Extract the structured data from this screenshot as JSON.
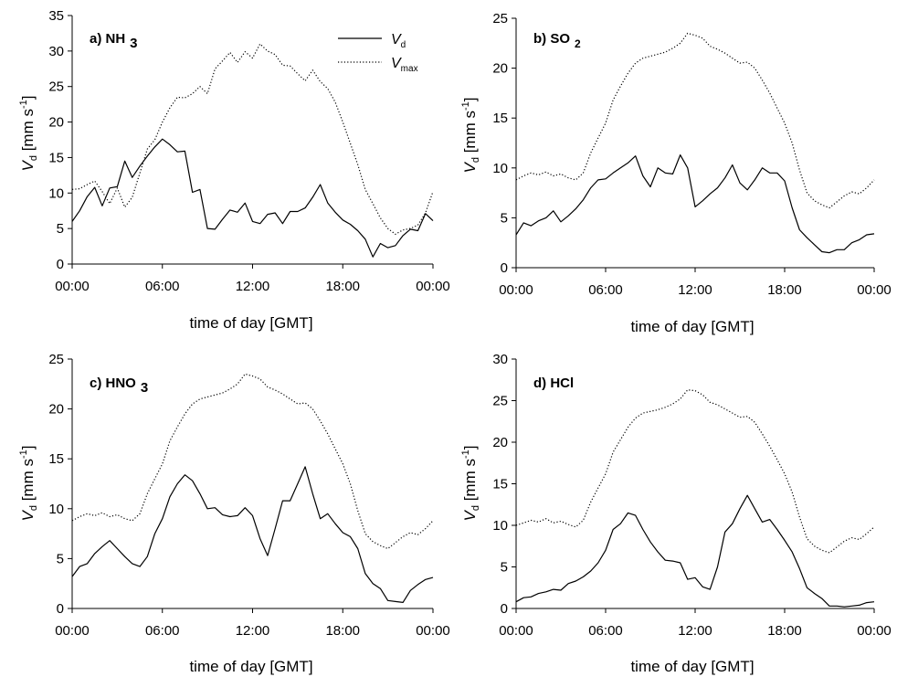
{
  "legend": {
    "vd_label": "V",
    "vd_sub": "d",
    "vmax_label": "V",
    "vmax_sub": "max"
  },
  "ylabel_main": "V",
  "ylabel_sub": "d",
  "ylabel_unit_base": " [mm s",
  "ylabel_unit_sup": "-1",
  "ylabel_unit_close": "]",
  "xlabel": "time of day [GMT]",
  "x_tick_labels": [
    "00:00",
    "06:00",
    "12:00",
    "18:00",
    "00:00"
  ],
  "chart_data": [
    {
      "type": "line",
      "title_main": "a) NH",
      "title_sub": "3",
      "xlim": [
        0,
        24
      ],
      "ylim": [
        0,
        35
      ],
      "yticks": [
        0,
        5,
        10,
        15,
        20,
        25,
        30,
        35
      ],
      "x": [
        0,
        0.5,
        1,
        1.5,
        2,
        2.5,
        3,
        3.5,
        4,
        4.5,
        5,
        5.5,
        6,
        6.5,
        7,
        7.5,
        8,
        8.5,
        9,
        9.5,
        10,
        10.5,
        11,
        11.5,
        12,
        12.5,
        13,
        13.5,
        14,
        14.5,
        15,
        15.5,
        16,
        16.5,
        17,
        17.5,
        18,
        18.5,
        19,
        19.5,
        20,
        20.5,
        21,
        21.5,
        22,
        22.5,
        23,
        23.5,
        24
      ],
      "series": [
        {
          "name": "Vd",
          "style": "solid",
          "values": [
            6.0,
            7.5,
            9.5,
            10.8,
            8.2,
            10.7,
            10.9,
            14.5,
            12.2,
            13.8,
            15.2,
            16.5,
            17.6,
            16.8,
            15.8,
            15.9,
            10.1,
            10.5,
            5.0,
            4.9,
            6.3,
            7.6,
            7.3,
            8.6,
            6.0,
            5.7,
            7.0,
            7.2,
            5.7,
            7.4,
            7.4,
            7.9,
            9.4,
            11.2,
            8.6,
            7.3,
            6.2,
            5.6,
            4.7,
            3.5,
            1.0,
            2.9,
            2.3,
            2.6,
            4.0,
            4.9,
            4.7,
            7.1,
            6.1
          ]
        },
        {
          "name": "Vmax",
          "style": "dotted",
          "values": [
            10.5,
            10.6,
            11.2,
            11.7,
            10.2,
            8.5,
            10.7,
            8.0,
            9.4,
            12.8,
            16.2,
            17.5,
            20.0,
            22.0,
            23.5,
            23.4,
            24.0,
            25.0,
            24.0,
            27.5,
            28.6,
            29.8,
            28.4,
            29.9,
            29.0,
            31.0,
            30.0,
            29.5,
            28.0,
            27.9,
            26.8,
            25.8,
            27.3,
            25.7,
            24.7,
            22.8,
            20.0,
            17.0,
            14.0,
            10.5,
            8.5,
            6.5,
            5.0,
            4.2,
            4.8,
            5.0,
            5.5,
            7.2,
            10.2
          ]
        }
      ]
    },
    {
      "type": "line",
      "title_main": "b) SO",
      "title_sub": "2",
      "xlim": [
        0,
        24
      ],
      "ylim": [
        0,
        25
      ],
      "yticks": [
        0,
        5,
        10,
        15,
        20,
        25
      ],
      "x": [
        0,
        0.5,
        1,
        1.5,
        2,
        2.5,
        3,
        3.5,
        4,
        4.5,
        5,
        5.5,
        6,
        6.5,
        7,
        7.5,
        8,
        8.5,
        9,
        9.5,
        10,
        10.5,
        11,
        11.5,
        12,
        12.5,
        13,
        13.5,
        14,
        14.5,
        15,
        15.5,
        16,
        16.5,
        17,
        17.5,
        18,
        18.5,
        19,
        19.5,
        20,
        20.5,
        21,
        21.5,
        22,
        22.5,
        23,
        23.5,
        24
      ],
      "series": [
        {
          "name": "Vd",
          "style": "solid",
          "values": [
            3.3,
            4.5,
            4.2,
            4.7,
            5.0,
            5.7,
            4.6,
            5.2,
            5.9,
            6.8,
            8.0,
            8.8,
            8.9,
            9.5,
            10.0,
            10.5,
            11.2,
            9.2,
            8.1,
            10.0,
            9.5,
            9.4,
            11.3,
            10.0,
            6.1,
            6.7,
            7.4,
            8.0,
            9.0,
            10.3,
            8.5,
            7.8,
            8.8,
            10.0,
            9.5,
            9.5,
            8.7,
            6.0,
            3.8,
            3.0,
            2.3,
            1.6,
            1.5,
            1.8,
            1.8,
            2.5,
            2.8,
            3.3,
            3.4
          ]
        },
        {
          "name": "Vmax",
          "style": "dotted",
          "values": [
            8.8,
            9.2,
            9.5,
            9.3,
            9.6,
            9.2,
            9.4,
            9.0,
            8.8,
            9.5,
            11.5,
            13.0,
            14.5,
            16.8,
            18.2,
            19.5,
            20.5,
            21.0,
            21.2,
            21.4,
            21.6,
            22.0,
            22.5,
            23.5,
            23.3,
            23.0,
            22.2,
            21.9,
            21.5,
            21.0,
            20.5,
            20.6,
            20.0,
            18.8,
            17.5,
            16.0,
            14.5,
            12.5,
            9.8,
            7.5,
            6.7,
            6.3,
            6.0,
            6.6,
            7.2,
            7.6,
            7.4,
            8.0,
            8.8
          ]
        }
      ]
    },
    {
      "type": "line",
      "title_main": "c) HNO",
      "title_sub": "3",
      "xlim": [
        0,
        24
      ],
      "ylim": [
        0,
        25
      ],
      "yticks": [
        0,
        5,
        10,
        15,
        20,
        25
      ],
      "x": [
        0,
        0.5,
        1,
        1.5,
        2,
        2.5,
        3,
        3.5,
        4,
        4.5,
        5,
        5.5,
        6,
        6.5,
        7,
        7.5,
        8,
        8.5,
        9,
        9.5,
        10,
        10.5,
        11,
        11.5,
        12,
        12.5,
        13,
        13.5,
        14,
        14.5,
        15,
        15.5,
        16,
        16.5,
        17,
        17.5,
        18,
        18.5,
        19,
        19.5,
        20,
        20.5,
        21,
        21.5,
        22,
        22.5,
        23,
        23.5,
        24
      ],
      "series": [
        {
          "name": "Vd",
          "style": "solid",
          "values": [
            3.2,
            4.2,
            4.5,
            5.5,
            6.2,
            6.8,
            6.0,
            5.2,
            4.5,
            4.2,
            5.2,
            7.5,
            9.0,
            11.2,
            12.5,
            13.4,
            12.8,
            11.5,
            10.0,
            10.1,
            9.4,
            9.2,
            9.3,
            10.1,
            9.3,
            7.0,
            5.3,
            8.0,
            10.8,
            10.8,
            12.5,
            14.2,
            11.5,
            9.0,
            9.5,
            8.5,
            7.6,
            7.2,
            6.0,
            3.5,
            2.5,
            2.0,
            0.8,
            0.7,
            0.6,
            1.8,
            2.4,
            2.9,
            3.1
          ]
        },
        {
          "name": "Vmax",
          "style": "dotted",
          "values": [
            8.8,
            9.2,
            9.5,
            9.3,
            9.6,
            9.2,
            9.4,
            9.0,
            8.8,
            9.5,
            11.5,
            13.0,
            14.5,
            16.8,
            18.2,
            19.5,
            20.5,
            21.0,
            21.2,
            21.4,
            21.6,
            22.0,
            22.5,
            23.5,
            23.3,
            23.0,
            22.2,
            21.9,
            21.5,
            21.0,
            20.5,
            20.6,
            20.0,
            18.8,
            17.5,
            16.0,
            14.5,
            12.5,
            9.8,
            7.5,
            6.7,
            6.3,
            6.0,
            6.6,
            7.2,
            7.6,
            7.4,
            8.0,
            8.8
          ]
        }
      ]
    },
    {
      "type": "line",
      "title_main": "d) HCl",
      "title_sub": "",
      "xlim": [
        0,
        24
      ],
      "ylim": [
        0,
        30
      ],
      "yticks": [
        0,
        5,
        10,
        15,
        20,
        25,
        30
      ],
      "x": [
        0,
        0.5,
        1,
        1.5,
        2,
        2.5,
        3,
        3.5,
        4,
        4.5,
        5,
        5.5,
        6,
        6.5,
        7,
        7.5,
        8,
        8.5,
        9,
        9.5,
        10,
        10.5,
        11,
        11.5,
        12,
        12.5,
        13,
        13.5,
        14,
        14.5,
        15,
        15.5,
        16,
        16.5,
        17,
        17.5,
        18,
        18.5,
        19,
        19.5,
        20,
        20.5,
        21,
        21.5,
        22,
        22.5,
        23,
        23.5,
        24
      ],
      "series": [
        {
          "name": "Vd",
          "style": "solid",
          "values": [
            0.8,
            1.3,
            1.4,
            1.8,
            2.0,
            2.3,
            2.2,
            3.0,
            3.3,
            3.8,
            4.5,
            5.5,
            7.0,
            9.5,
            10.2,
            11.5,
            11.2,
            9.5,
            8.0,
            6.8,
            5.8,
            5.7,
            5.5,
            3.5,
            3.7,
            2.6,
            2.3,
            5.0,
            9.2,
            10.2,
            12.0,
            13.6,
            12.0,
            10.4,
            10.7,
            9.5,
            8.2,
            6.8,
            4.8,
            2.5,
            1.8,
            1.2,
            0.3,
            0.3,
            0.2,
            0.3,
            0.4,
            0.7,
            0.8
          ]
        },
        {
          "name": "Vmax",
          "style": "dotted",
          "values": [
            10.0,
            10.3,
            10.6,
            10.4,
            10.8,
            10.3,
            10.5,
            10.1,
            9.8,
            10.6,
            12.8,
            14.5,
            16.2,
            18.8,
            20.3,
            21.8,
            22.9,
            23.5,
            23.7,
            23.9,
            24.2,
            24.6,
            25.2,
            26.3,
            26.2,
            25.7,
            24.8,
            24.5,
            24.0,
            23.5,
            23.0,
            23.1,
            22.4,
            21.0,
            19.5,
            17.9,
            16.2,
            14.0,
            11.0,
            8.4,
            7.5,
            7.0,
            6.7,
            7.4,
            8.1,
            8.5,
            8.3,
            9.0,
            9.8
          ]
        }
      ]
    }
  ]
}
